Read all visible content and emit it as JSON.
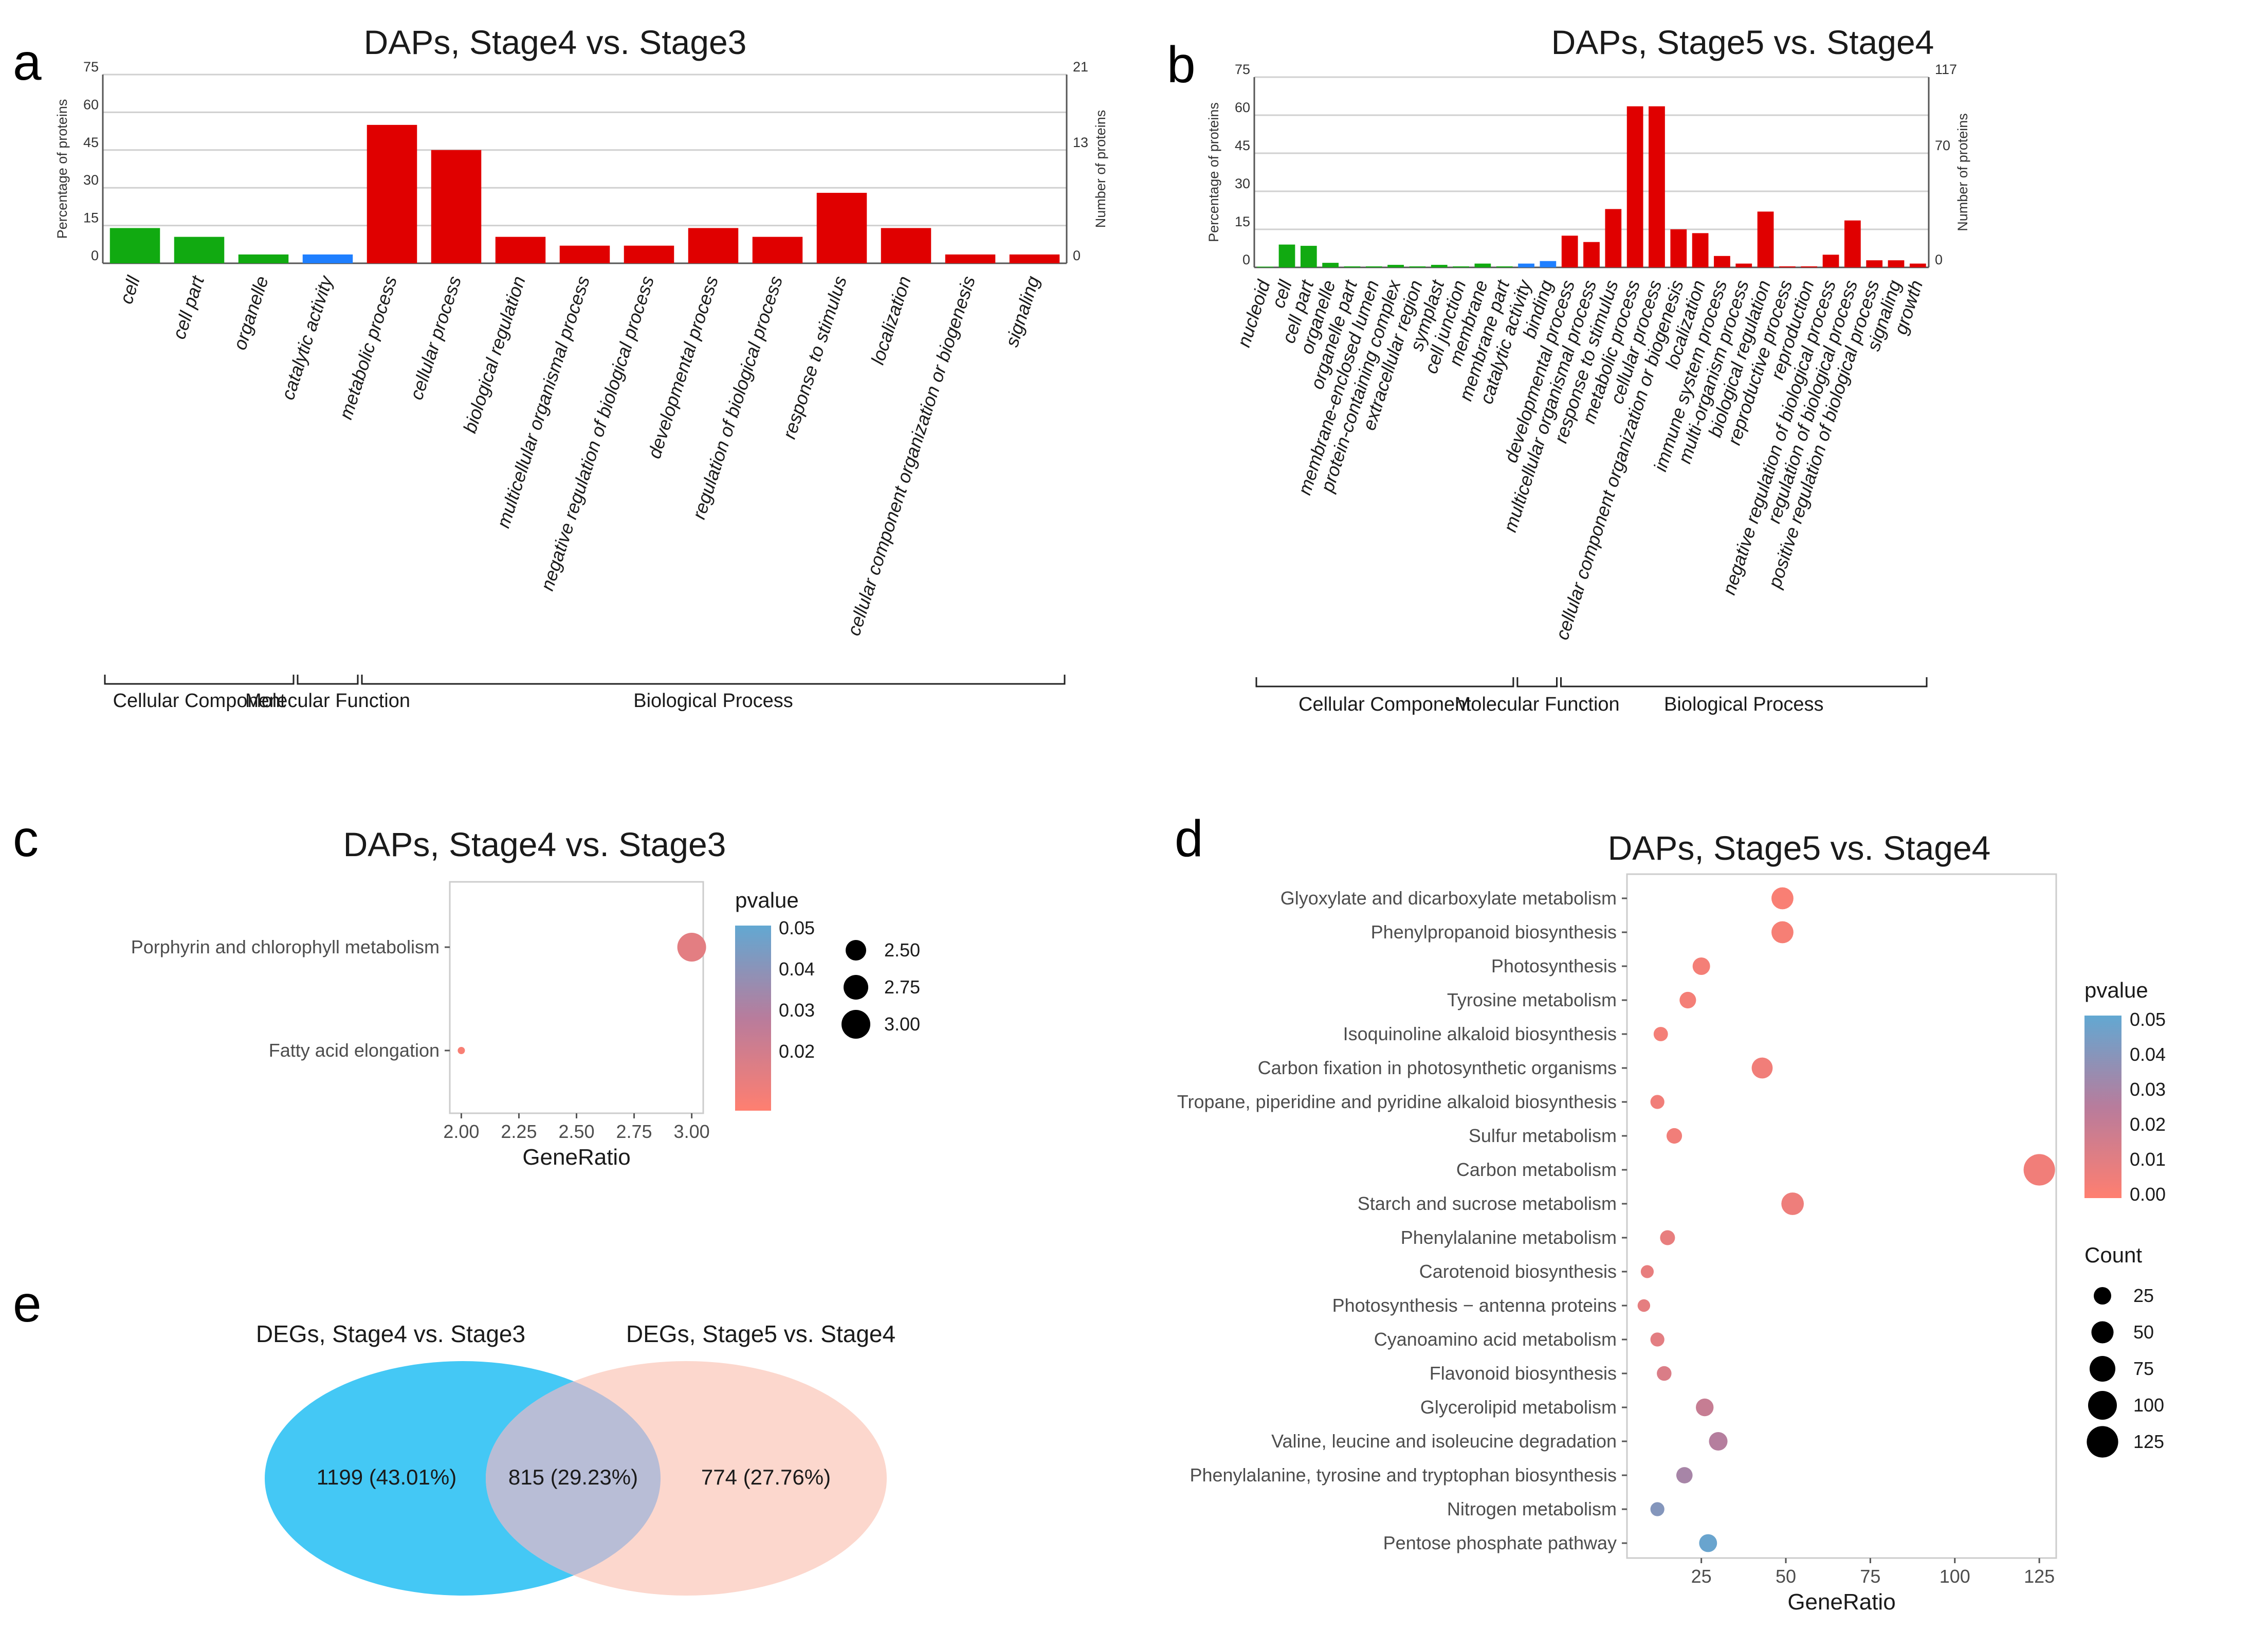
{
  "panels": {
    "a": "a",
    "b": "b",
    "c": "c",
    "d": "d",
    "e": "e"
  },
  "colors": {
    "cc": "#11aa11",
    "mf": "#1f7fff",
    "bp": "#e00000",
    "low_p": "#ff7f70",
    "mid_p": "#b87c9c",
    "high_p": "#62a8d2",
    "venn_left": "#44c8f5",
    "venn_right": "#fcd7cd",
    "venn_overlap": "#b8bdd6"
  },
  "chart_data": [
    {
      "id": "a",
      "type": "bar",
      "title": "DAPs, Stage4 vs. Stage3",
      "ylabel_left": "Percentage of proteins",
      "ylabel_right": "Number of proteins",
      "yticks_left": [
        "75",
        "60",
        "45",
        "30",
        "15",
        "0"
      ],
      "yticks_right": [
        "21",
        "13",
        "0"
      ],
      "ylim": [
        0,
        75
      ],
      "categories": [
        "cell",
        "cell part",
        "organelle",
        "catalytic activity",
        "metabolic process",
        "cellular process",
        "biological regulation",
        "multicellular organismal process",
        "negative regulation of biological process",
        "developmental process",
        "regulation of biological process",
        "response to stimulus",
        "localization",
        "cellular component organization or biogenesis",
        "signaling"
      ],
      "values": [
        14,
        10.5,
        3.5,
        3.5,
        55,
        45,
        10.5,
        7,
        7,
        14,
        10.5,
        28,
        14,
        3.5,
        3.5
      ],
      "groups": [
        "cc",
        "cc",
        "cc",
        "mf",
        "bp",
        "bp",
        "bp",
        "bp",
        "bp",
        "bp",
        "bp",
        "bp",
        "bp",
        "bp",
        "bp"
      ],
      "group_labels": [
        {
          "label": "Cellular Component",
          "from": 0,
          "to": 2
        },
        {
          "label": "Molecular Function",
          "from": 3,
          "to": 3
        },
        {
          "label": "Biological Process",
          "from": 4,
          "to": 14
        }
      ]
    },
    {
      "id": "b",
      "type": "bar",
      "title": "DAPs, Stage5 vs. Stage4",
      "ylabel_left": "Percentage of proteins",
      "ylabel_right": "Number of proteins",
      "yticks_left": [
        "75",
        "60",
        "45",
        "30",
        "15",
        "0"
      ],
      "yticks_right": [
        "117",
        "70",
        "0"
      ],
      "ylim": [
        0,
        75
      ],
      "categories": [
        "nucleoid",
        "cell",
        "cell part",
        "organelle",
        "organelle part",
        "membrane-enclosed lumen",
        "protein-containing complex",
        "extracellular region",
        "symplast",
        "cell junction",
        "membrane",
        "membrane part",
        "catalytic activity",
        "binding",
        "developmental process",
        "multicellular organismal process",
        "response to stimulus",
        "metabolic process",
        "cellular process",
        "cellular component organization or biogenesis",
        "localization",
        "immune system process",
        "multi-organism process",
        "biological regulation",
        "reproductive process",
        "reproduction",
        "negative regulation of biological process",
        "regulation of biological process",
        "positive regulation of biological process",
        "signaling",
        "growth"
      ],
      "values": [
        0.3,
        9,
        8.5,
        1.8,
        0.4,
        0.4,
        1,
        0.4,
        1,
        0.4,
        1.5,
        0.4,
        1.5,
        2.5,
        12.5,
        10,
        23,
        63.5,
        63.5,
        15,
        13.5,
        4.5,
        1.5,
        22,
        0.4,
        0.4,
        5,
        18.5,
        2.8,
        2.8,
        1.5
      ],
      "groups": [
        "cc",
        "cc",
        "cc",
        "cc",
        "cc",
        "cc",
        "cc",
        "cc",
        "cc",
        "cc",
        "cc",
        "cc",
        "mf",
        "mf",
        "bp",
        "bp",
        "bp",
        "bp",
        "bp",
        "bp",
        "bp",
        "bp",
        "bp",
        "bp",
        "bp",
        "bp",
        "bp",
        "bp",
        "bp",
        "bp",
        "bp"
      ],
      "group_labels": [
        {
          "label": "Cellular Component",
          "from": 0,
          "to": 11
        },
        {
          "label": "Molecular Function",
          "from": 12,
          "to": 13
        },
        {
          "label": "Biological Process",
          "from": 14,
          "to": 30
        }
      ]
    },
    {
      "id": "c",
      "type": "scatter",
      "title": "DAPs, Stage4 vs. Stage3",
      "xlabel": "GeneRatio",
      "xlim": [
        1.95,
        3.05
      ],
      "xticks": [
        "2.00",
        "2.25",
        "2.50",
        "2.75",
        "3.00"
      ],
      "categories": [
        "Porphyrin and chlorophyll metabolism",
        "Fatty acid elongation"
      ],
      "points": [
        {
          "term": "Porphyrin and chlorophyll metabolism",
          "x": 3.0,
          "size": 3.0,
          "pvalue": 0.018
        },
        {
          "term": "Fatty acid elongation",
          "x": 2.0,
          "size": 2.0,
          "pvalue": 0.012
        }
      ],
      "color_legend": {
        "title": "pvalue",
        "ticks": [
          "0.05",
          "0.04",
          "0.03",
          "0.02"
        ],
        "range": [
          0.01,
          0.05
        ]
      },
      "size_legend": {
        "labels": [
          "2.50",
          "2.75",
          "3.00"
        ],
        "values": [
          2.5,
          2.75,
          3.0
        ]
      }
    },
    {
      "id": "d",
      "type": "scatter",
      "title": "DAPs, Stage5 vs. Stage4",
      "xlabel": "GeneRatio",
      "xlim": [
        3,
        130
      ],
      "xticks": [
        "25",
        "50",
        "75",
        "100",
        "125"
      ],
      "categories": [
        "Glyoxylate and dicarboxylate metabolism",
        "Phenylpropanoid biosynthesis",
        "Photosynthesis",
        "Tyrosine metabolism",
        "Isoquinoline alkaloid biosynthesis",
        "Carbon fixation in photosynthetic organisms",
        "Tropane, piperidine and pyridine alkaloid biosynthesis",
        "Sulfur metabolism",
        "Carbon metabolism",
        "Starch and sucrose metabolism",
        "Phenylalanine metabolism",
        "Carotenoid biosynthesis",
        "Photosynthesis − antenna proteins",
        "Cyanoamino acid metabolism",
        "Flavonoid biosynthesis",
        "Glycerolipid metabolism",
        "Valine, leucine and isoleucine degradation",
        "Phenylalanine, tyrosine and tryptophan biosynthesis",
        "Nitrogen metabolism",
        "Pentose phosphate pathway"
      ],
      "points": [
        {
          "x": 49,
          "count": 49,
          "pvalue": 0.002
        },
        {
          "x": 49,
          "count": 49,
          "pvalue": 0.003
        },
        {
          "x": 25,
          "count": 25,
          "pvalue": 0.004
        },
        {
          "x": 21,
          "count": 21,
          "pvalue": 0.004
        },
        {
          "x": 13,
          "count": 13,
          "pvalue": 0.004
        },
        {
          "x": 43,
          "count": 43,
          "pvalue": 0.005
        },
        {
          "x": 12,
          "count": 12,
          "pvalue": 0.005
        },
        {
          "x": 17,
          "count": 17,
          "pvalue": 0.005
        },
        {
          "x": 125,
          "count": 125,
          "pvalue": 0.005
        },
        {
          "x": 52,
          "count": 52,
          "pvalue": 0.006
        },
        {
          "x": 15,
          "count": 15,
          "pvalue": 0.008
        },
        {
          "x": 9,
          "count": 9,
          "pvalue": 0.008
        },
        {
          "x": 8,
          "count": 8,
          "pvalue": 0.009
        },
        {
          "x": 12,
          "count": 12,
          "pvalue": 0.01
        },
        {
          "x": 14,
          "count": 14,
          "pvalue": 0.013
        },
        {
          "x": 26,
          "count": 26,
          "pvalue": 0.02
        },
        {
          "x": 30,
          "count": 30,
          "pvalue": 0.026
        },
        {
          "x": 20,
          "count": 20,
          "pvalue": 0.03
        },
        {
          "x": 12,
          "count": 12,
          "pvalue": 0.04
        },
        {
          "x": 27,
          "count": 27,
          "pvalue": 0.048
        }
      ],
      "color_legend": {
        "title": "pvalue",
        "ticks": [
          "0.05",
          "0.04",
          "0.03",
          "0.02",
          "0.01",
          "0.00"
        ],
        "range": [
          0,
          0.05
        ]
      },
      "size_legend": {
        "title": "Count",
        "labels": [
          "25",
          "50",
          "75",
          "100",
          "125"
        ],
        "values": [
          25,
          50,
          75,
          100,
          125
        ]
      }
    },
    {
      "id": "e",
      "type": "venn",
      "sets": [
        {
          "name": "DEGs, Stage4 vs. Stage3",
          "only": "1199 (43.01%)"
        },
        {
          "name": "DEGs, Stage5 vs. Stage4",
          "only": "774 (27.76%)"
        }
      ],
      "overlap": "815 (29.23%)"
    }
  ]
}
